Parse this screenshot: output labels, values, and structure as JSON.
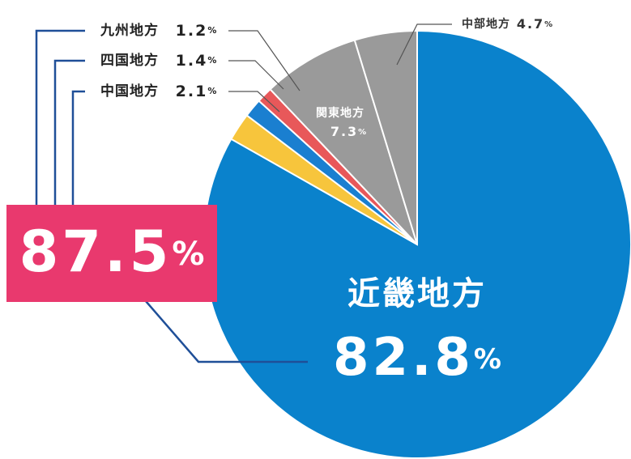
{
  "chart_data": {
    "type": "pie",
    "categories": [
      "近畿地方",
      "中国地方",
      "四国地方",
      "九州地方",
      "関東地方",
      "中部地方"
    ],
    "values": [
      82.8,
      2.1,
      1.4,
      1.2,
      7.3,
      4.7
    ],
    "colors": [
      "#0a82cc",
      "#f7c53c",
      "#1a7fd0",
      "#e8585a",
      "#9a9a9a",
      "#9a9a9a"
    ],
    "unit": "%",
    "group_total": 87.5
  }
}
